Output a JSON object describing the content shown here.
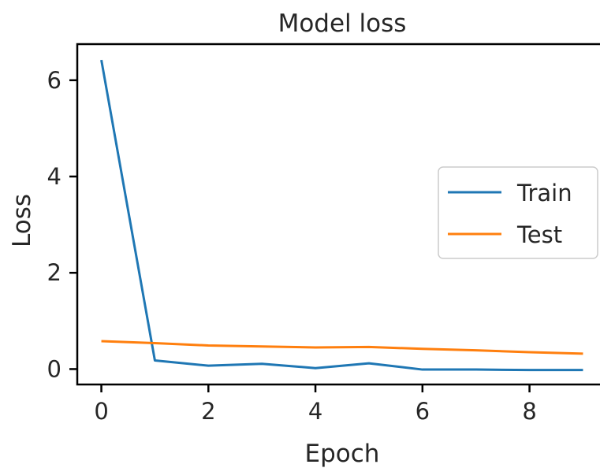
{
  "chart_data": {
    "type": "line",
    "title": "Model loss",
    "xlabel": "Epoch",
    "ylabel": "Loss",
    "x": [
      0,
      1,
      2,
      3,
      4,
      5,
      6,
      7,
      8,
      9
    ],
    "xlim": [
      -0.45,
      9.45
    ],
    "ylim": [
      -0.32,
      6.75
    ],
    "xticks": [
      0,
      2,
      4,
      6,
      8
    ],
    "yticks": [
      0,
      2,
      4,
      6
    ],
    "grid": false,
    "legend_position": "center-right",
    "series": [
      {
        "name": "Train",
        "color": "#1f77b4",
        "values": [
          6.42,
          0.18,
          0.07,
          0.11,
          0.02,
          0.12,
          -0.01,
          -0.01,
          -0.02,
          -0.02
        ]
      },
      {
        "name": "Test",
        "color": "#ff7f0e",
        "values": [
          0.58,
          0.54,
          0.49,
          0.47,
          0.45,
          0.46,
          0.42,
          0.39,
          0.35,
          0.32
        ]
      }
    ]
  }
}
